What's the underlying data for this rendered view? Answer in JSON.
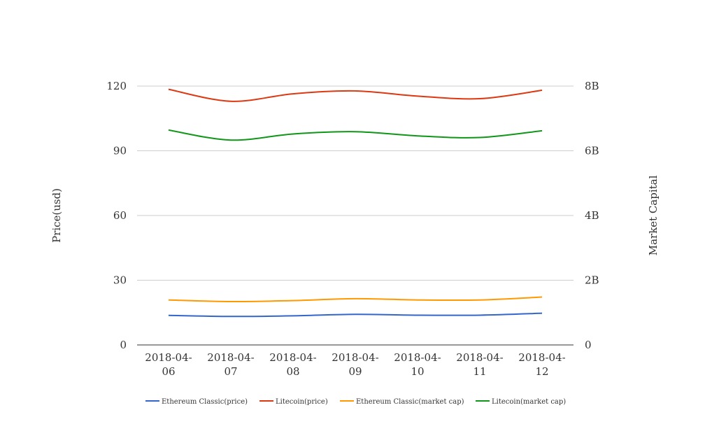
{
  "chart_data": {
    "type": "line",
    "categories": [
      "2018-04-06",
      "2018-04-07",
      "2018-04-08",
      "2018-04-09",
      "2018-04-10",
      "2018-04-11",
      "2018-04-12"
    ],
    "category_label_lines": [
      [
        "2018-04-",
        "06"
      ],
      [
        "2018-04-",
        "07"
      ],
      [
        "2018-04-",
        "08"
      ],
      [
        "2018-04-",
        "09"
      ],
      [
        "2018-04-",
        "10"
      ],
      [
        "2018-04-",
        "11"
      ],
      [
        "2018-04-",
        "12"
      ]
    ],
    "ylabel_left": "Price(usd)",
    "ylabel_right": "Market Capital",
    "ylim_left": [
      0,
      120
    ],
    "ylim_right": [
      0,
      8000000000
    ],
    "left_ticks": [
      {
        "value": 0,
        "label": "0"
      },
      {
        "value": 30,
        "label": "30"
      },
      {
        "value": 60,
        "label": "60"
      },
      {
        "value": 90,
        "label": "90"
      },
      {
        "value": 120,
        "label": "120"
      }
    ],
    "right_ticks": [
      {
        "value": 0,
        "label": "0"
      },
      {
        "value": 2000000000,
        "label": "2B"
      },
      {
        "value": 4000000000,
        "label": "4B"
      },
      {
        "value": 6000000000,
        "label": "6B"
      },
      {
        "value": 8000000000,
        "label": "8B"
      }
    ],
    "grid": true,
    "legend_position": "bottom",
    "series": [
      {
        "name": "Ethereum Classic(price)",
        "axis": "left",
        "color": "#3366cc",
        "values": [
          13.7,
          13.2,
          13.5,
          14.2,
          13.8,
          13.8,
          14.7
        ]
      },
      {
        "name": "Litecoin(price)",
        "axis": "right",
        "color": "#dc3912",
        "values": [
          7900000000,
          7530000000,
          7760000000,
          7850000000,
          7690000000,
          7610000000,
          7870000000
        ]
      },
      {
        "name": "Ethereum Classic(market cap)",
        "axis": "right",
        "color": "#ff9900",
        "values": [
          1390000000,
          1340000000,
          1370000000,
          1430000000,
          1390000000,
          1390000000,
          1480000000
        ]
      },
      {
        "name": "Litecoin(market cap)",
        "axis": "right",
        "color": "#109618",
        "values": [
          6640000000,
          6330000000,
          6520000000,
          6590000000,
          6460000000,
          6410000000,
          6620000000
        ]
      }
    ]
  }
}
